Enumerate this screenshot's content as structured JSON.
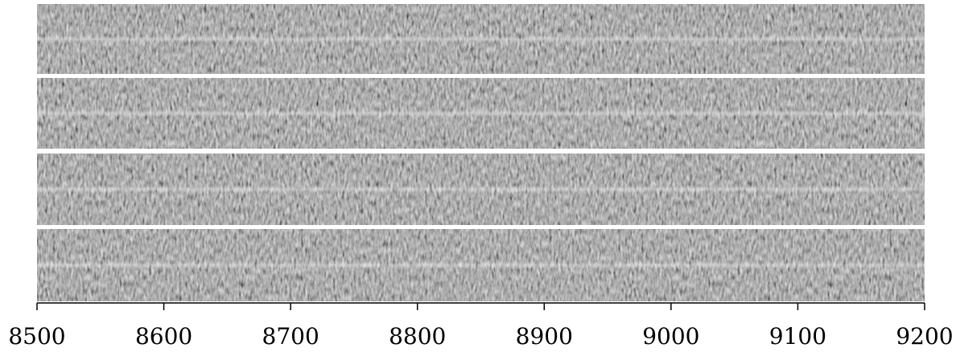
{
  "chart_data": {
    "type": "image",
    "xlim": [
      8500,
      9200
    ],
    "xticks": [
      8500,
      8600,
      8700,
      8800,
      8900,
      9000,
      9100,
      9200
    ]
  }
}
